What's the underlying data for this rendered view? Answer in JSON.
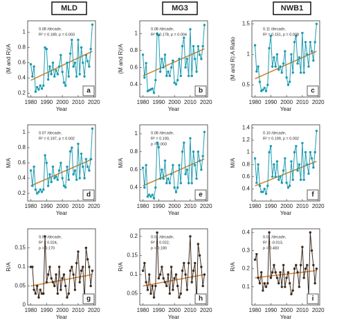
{
  "column_headers": [
    "MLD",
    "MG3",
    "NWB1"
  ],
  "chart_data": [
    {
      "type": "line",
      "panel_label": "a",
      "ylabel": "(M and R)/A",
      "xlabel": "Year",
      "annotations": [
        "0.08 /decade,",
        "R² = 0.189, p = 0.003"
      ],
      "x": [
        1980,
        1981,
        1982,
        1983,
        1984,
        1985,
        1986,
        1987,
        1988,
        1989,
        1990,
        1991,
        1992,
        1993,
        1994,
        1995,
        1996,
        1997,
        1998,
        1999,
        2000,
        2001,
        2002,
        2003,
        2004,
        2005,
        2006,
        2007,
        2008,
        2009,
        2010,
        2011,
        2012,
        2013,
        2014,
        2015,
        2016,
        2017,
        2018,
        2019
      ],
      "values": [
        0.58,
        0.42,
        0.55,
        0.22,
        0.28,
        0.25,
        0.3,
        0.26,
        0.3,
        0.8,
        0.78,
        0.38,
        0.55,
        0.45,
        0.6,
        0.42,
        0.5,
        0.45,
        0.55,
        0.7,
        0.48,
        0.34,
        0.3,
        0.6,
        0.42,
        0.72,
        0.9,
        0.55,
        0.6,
        0.42,
        0.9,
        0.45,
        0.8,
        0.6,
        0.42,
        0.7,
        0.62,
        0.55,
        0.78,
        1.1
      ],
      "color": "#1b9bb0",
      "trend": {
        "x": [
          1980,
          2019
        ],
        "values": [
          0.37,
          0.75
        ],
        "color": "#d9822b"
      },
      "xlim": [
        1978,
        2021
      ],
      "xticks": [
        1980,
        1990,
        2000,
        2010,
        2020
      ],
      "ylim": [
        0.15,
        1.15
      ],
      "yticks": [
        0.2,
        0.4,
        0.6,
        0.8,
        1
      ]
    },
    {
      "type": "line",
      "panel_label": "b",
      "ylabel": "(M and R)/A",
      "xlabel": "Year",
      "annotations": [
        "0.08 /decade,",
        "R² = 0.178, p = 0.004"
      ],
      "x": [
        1980,
        1981,
        1982,
        1983,
        1984,
        1985,
        1986,
        1987,
        1988,
        1989,
        1990,
        1991,
        1992,
        1993,
        1994,
        1995,
        1996,
        1997,
        1998,
        1999,
        2000,
        2001,
        2002,
        2003,
        2004,
        2005,
        2006,
        2007,
        2008,
        2009,
        2010,
        2011,
        2012,
        2013,
        2014,
        2015,
        2016,
        2017,
        2018,
        2019
      ],
      "values": [
        0.75,
        0.48,
        0.65,
        0.32,
        0.33,
        0.34,
        0.35,
        0.3,
        0.45,
        1.0,
        0.98,
        0.55,
        0.7,
        0.6,
        0.75,
        0.5,
        0.55,
        0.5,
        0.6,
        0.68,
        0.42,
        0.4,
        0.45,
        0.7,
        0.5,
        0.85,
        0.95,
        0.6,
        0.7,
        0.5,
        1.05,
        0.5,
        0.85,
        0.7,
        0.55,
        0.85,
        0.75,
        0.7,
        0.85,
        1.1
      ],
      "color": "#1b9bb0",
      "trend": {
        "x": [
          1980,
          2019
        ],
        "values": [
          0.5,
          0.82
        ],
        "color": "#d9822b"
      },
      "xlim": [
        1978,
        2021
      ],
      "xticks": [
        1980,
        1990,
        2000,
        2010,
        2020
      ],
      "ylim": [
        0.25,
        1.15
      ],
      "yticks": [
        0.4,
        0.6,
        0.8,
        1
      ]
    },
    {
      "type": "line",
      "panel_label": "c",
      "ylabel": "(M and R):A Ratio",
      "xlabel": "Year",
      "annotations": [
        "0.11 /decade,",
        "R² = 0.151, p = 0.008"
      ],
      "x": [
        1980,
        1981,
        1982,
        1983,
        1984,
        1985,
        1986,
        1987,
        1988,
        1989,
        1990,
        1991,
        1992,
        1993,
        1994,
        1995,
        1996,
        1997,
        1998,
        1999,
        2000,
        2001,
        2002,
        2003,
        2004,
        2005,
        2006,
        2007,
        2008,
        2009,
        2010,
        2011,
        2012,
        2013,
        2014,
        2015,
        2016,
        2017,
        2018,
        2019
      ],
      "values": [
        1.15,
        0.72,
        0.8,
        0.55,
        0.4,
        0.42,
        0.45,
        0.4,
        0.5,
        1.1,
        1.3,
        0.8,
        0.95,
        0.8,
        1.0,
        0.75,
        0.8,
        0.7,
        0.85,
        1.05,
        0.62,
        0.5,
        0.55,
        1.0,
        0.7,
        1.2,
        1.3,
        0.85,
        0.95,
        0.7,
        1.35,
        0.7,
        1.2,
        1.0,
        0.8,
        1.2,
        1.05,
        0.9,
        1.2,
        1.5
      ],
      "color": "#1b9bb0",
      "trend": {
        "x": [
          1980,
          2019
        ],
        "values": [
          0.6,
          1.05
        ],
        "color": "#d9822b"
      },
      "xlim": [
        1978,
        2021
      ],
      "xticks": [
        1980,
        1990,
        2000,
        2010,
        2020
      ],
      "ylim": [
        0.3,
        1.55
      ],
      "yticks": [
        0.5,
        1,
        1.5
      ]
    },
    {
      "type": "line",
      "panel_label": "d",
      "ylabel": "M/A",
      "xlabel": "Year",
      "annotations": [
        "0.07 /decade,",
        "R² = 0.197, p = 0.002"
      ],
      "x": [
        1980,
        1981,
        1982,
        1983,
        1984,
        1985,
        1986,
        1987,
        1988,
        1989,
        1990,
        1991,
        1992,
        1993,
        1994,
        1995,
        1996,
        1997,
        1998,
        1999,
        2000,
        2001,
        2002,
        2003,
        2004,
        2005,
        2006,
        2007,
        2008,
        2009,
        2010,
        2011,
        2012,
        2013,
        2014,
        2015,
        2016,
        2017,
        2018,
        2019
      ],
      "values": [
        0.5,
        0.3,
        0.55,
        0.25,
        0.2,
        0.22,
        0.25,
        0.22,
        0.25,
        0.7,
        0.6,
        0.3,
        0.45,
        0.35,
        0.55,
        0.4,
        0.42,
        0.38,
        0.5,
        0.6,
        0.4,
        0.3,
        0.28,
        0.55,
        0.38,
        0.75,
        0.8,
        0.45,
        0.5,
        0.38,
        0.85,
        0.4,
        0.72,
        0.55,
        0.4,
        0.65,
        0.55,
        0.5,
        0.65,
        1.05
      ],
      "color": "#1b9bb0",
      "trend": {
        "x": [
          1980,
          2019
        ],
        "values": [
          0.3,
          0.65
        ],
        "color": "#d9822b"
      },
      "xlim": [
        1978,
        2021
      ],
      "xticks": [
        1980,
        1990,
        2000,
        2010,
        2020
      ],
      "ylim": [
        0.1,
        1.1
      ],
      "yticks": [
        0.2,
        0.4,
        0.6,
        0.8,
        1
      ]
    },
    {
      "type": "line",
      "panel_label": "e",
      "ylabel": "M/A",
      "xlabel": "Year",
      "annotations": [
        "0.08 /decade,",
        "R² = 0.190,",
        "p = 0.003"
      ],
      "x": [
        1980,
        1981,
        1982,
        1983,
        1984,
        1985,
        1986,
        1987,
        1988,
        1989,
        1990,
        1991,
        1992,
        1993,
        1994,
        1995,
        1996,
        1997,
        1998,
        1999,
        2000,
        2001,
        2002,
        2003,
        2004,
        2005,
        2006,
        2007,
        2008,
        2009,
        2010,
        2011,
        2012,
        2013,
        2014,
        2015,
        2016,
        2017,
        2018,
        2019
      ],
      "values": [
        0.62,
        0.4,
        0.65,
        0.3,
        0.32,
        0.3,
        0.32,
        0.28,
        0.4,
        0.9,
        0.85,
        0.5,
        0.6,
        0.5,
        0.7,
        0.45,
        0.5,
        0.45,
        0.55,
        0.65,
        0.4,
        0.35,
        0.4,
        0.65,
        0.45,
        0.8,
        0.9,
        0.55,
        0.6,
        0.45,
        0.95,
        0.45,
        0.8,
        0.65,
        0.5,
        0.8,
        0.7,
        0.6,
        0.75,
        1.02
      ],
      "color": "#1b9bb0",
      "trend": {
        "x": [
          1980,
          2019
        ],
        "values": [
          0.42,
          0.72
        ],
        "color": "#d9822b"
      },
      "xlim": [
        1978,
        2021
      ],
      "xticks": [
        1980,
        1990,
        2000,
        2010,
        2020
      ],
      "ylim": [
        0.25,
        1.1
      ],
      "yticks": [
        0.4,
        0.6,
        0.8,
        1
      ]
    },
    {
      "type": "line",
      "panel_label": "f",
      "ylabel": "M/A",
      "xlabel": "Year",
      "annotations": [
        "0.10 /decade,",
        "R² = 0.199, p = 0.002"
      ],
      "x": [
        1980,
        1981,
        1982,
        1983,
        1984,
        1985,
        1986,
        1987,
        1988,
        1989,
        1990,
        1991,
        1992,
        1993,
        1994,
        1995,
        1996,
        1997,
        1998,
        1999,
        2000,
        2001,
        2002,
        2003,
        2004,
        2005,
        2006,
        2007,
        2008,
        2009,
        2010,
        2011,
        2012,
        2013,
        2014,
        2015,
        2016,
        2017,
        2018,
        2019
      ],
      "values": [
        0.9,
        0.5,
        0.8,
        0.45,
        0.35,
        0.35,
        0.4,
        0.32,
        0.45,
        1.0,
        1.1,
        0.6,
        0.8,
        0.6,
        0.85,
        0.55,
        0.6,
        0.5,
        0.7,
        0.9,
        0.5,
        0.42,
        0.45,
        0.85,
        0.55,
        1.0,
        1.1,
        0.7,
        0.8,
        0.55,
        1.15,
        0.55,
        1.0,
        0.8,
        0.65,
        1.0,
        0.9,
        0.75,
        1.0,
        1.35
      ],
      "color": "#1b9bb0",
      "trend": {
        "x": [
          1980,
          2019
        ],
        "values": [
          0.45,
          0.85
        ],
        "color": "#d9822b"
      },
      "xlim": [
        1978,
        2021
      ],
      "xticks": [
        1980,
        1990,
        2000,
        2010,
        2020
      ],
      "ylim": [
        0.2,
        1.45
      ],
      "yticks": [
        0.4,
        0.6,
        0.8,
        1,
        1.2,
        1.4
      ]
    },
    {
      "type": "line",
      "panel_label": "g",
      "ylabel": "R/A",
      "xlabel": "Year",
      "annotations": [
        "0.01 /decade,",
        "R² = 0.024,",
        "p = 0.170"
      ],
      "x": [
        1980,
        1981,
        1982,
        1983,
        1984,
        1985,
        1986,
        1987,
        1988,
        1989,
        1990,
        1991,
        1992,
        1993,
        1994,
        1995,
        1996,
        1997,
        1998,
        1999,
        2000,
        2001,
        2002,
        2003,
        2004,
        2005,
        2006,
        2007,
        2008,
        2009,
        2010,
        2011,
        2012,
        2013,
        2014,
        2015,
        2016,
        2017,
        2018,
        2019
      ],
      "values": [
        0.1,
        0.1,
        0.04,
        0.03,
        0.05,
        0.02,
        0.04,
        0.03,
        0.03,
        0.18,
        0.06,
        0.08,
        0.1,
        0.07,
        0.06,
        0.05,
        0.08,
        0.03,
        0.1,
        0.04,
        0.07,
        0.08,
        0.05,
        0.02,
        0.03,
        0.09,
        0.1,
        0.08,
        0.04,
        0.11,
        0.14,
        0.06,
        0.09,
        0.1,
        0.01,
        0.15,
        0.12,
        0.1,
        0.05,
        0.09
      ],
      "color": "#3b2a1e",
      "trend": {
        "x": [
          1980,
          2019
        ],
        "values": [
          0.05,
          0.08
        ],
        "color": "#d9822b"
      },
      "xlim": [
        1978,
        2021
      ],
      "xticks": [
        1980,
        1990,
        2000,
        2010,
        2020
      ],
      "ylim": [
        0,
        0.2
      ],
      "yticks": [
        0,
        0.05,
        0.1,
        0.15
      ]
    },
    {
      "type": "line",
      "panel_label": "h",
      "ylabel": "R/A",
      "xlabel": "Year",
      "annotations": [
        "0.01 /decade,",
        "R² = 0.022,",
        "p = 0.180"
      ],
      "x": [
        1980,
        1981,
        1982,
        1983,
        1984,
        1985,
        1986,
        1987,
        1988,
        1989,
        1990,
        1991,
        1992,
        1993,
        1994,
        1995,
        1996,
        1997,
        1998,
        1999,
        2000,
        2001,
        2002,
        2003,
        2004,
        2005,
        2006,
        2007,
        2008,
        2009,
        2010,
        2011,
        2012,
        2013,
        2014,
        2015,
        2016,
        2017,
        2018,
        2019
      ],
      "values": [
        0.11,
        0.13,
        0.08,
        0.06,
        0.1,
        0.05,
        0.07,
        0.04,
        0.07,
        0.21,
        0.09,
        0.1,
        0.12,
        0.09,
        0.08,
        0.07,
        0.1,
        0.05,
        0.12,
        0.06,
        0.09,
        0.1,
        0.07,
        0.04,
        0.05,
        0.11,
        0.13,
        0.1,
        0.06,
        0.13,
        0.2,
        0.08,
        0.11,
        0.13,
        0.03,
        0.18,
        0.15,
        0.12,
        0.07,
        0.1
      ],
      "color": "#3b2a1e",
      "trend": {
        "x": [
          1980,
          2019
        ],
        "values": [
          0.07,
          0.1
        ],
        "color": "#d9822b"
      },
      "xlim": [
        1978,
        2021
      ],
      "xticks": [
        1980,
        1990,
        2000,
        2010,
        2020
      ],
      "ylim": [
        0.02,
        0.22
      ],
      "yticks": [
        0.05,
        0.1,
        0.15,
        0.2
      ]
    },
    {
      "type": "line",
      "panel_label": "i",
      "ylabel": "R/A",
      "xlabel": "Year",
      "annotations": [
        "0.01 /decade,",
        "R² = -0.013,",
        "p = 0.483"
      ],
      "x": [
        1980,
        1981,
        1982,
        1983,
        1984,
        1985,
        1986,
        1987,
        1988,
        1989,
        1990,
        1991,
        1992,
        1993,
        1994,
        1995,
        1996,
        1997,
        1998,
        1999,
        2000,
        2001,
        2002,
        2003,
        2004,
        2005,
        2006,
        2007,
        2008,
        2009,
        2010,
        2011,
        2012,
        2013,
        2014,
        2015,
        2016,
        2017,
        2018,
        2019
      ],
      "values": [
        0.25,
        0.28,
        0.15,
        0.12,
        0.18,
        0.08,
        0.12,
        0.1,
        0.12,
        0.4,
        0.15,
        0.18,
        0.22,
        0.18,
        0.15,
        0.12,
        0.18,
        0.1,
        0.22,
        0.1,
        0.15,
        0.18,
        0.12,
        0.06,
        0.08,
        0.2,
        0.22,
        0.18,
        0.1,
        0.22,
        0.32,
        0.15,
        0.2,
        0.22,
        0.05,
        0.4,
        0.3,
        0.22,
        0.12,
        0.2
      ],
      "color": "#3b2a1e",
      "trend": {
        "x": [
          1980,
          2019
        ],
        "values": [
          0.15,
          0.19
        ],
        "color": "#d9822b"
      },
      "xlim": [
        1978,
        2021
      ],
      "xticks": [
        1980,
        1990,
        2000,
        2010,
        2020
      ],
      "ylim": [
        0,
        0.42
      ],
      "yticks": [
        0.1,
        0.2,
        0.3,
        0.4
      ]
    }
  ]
}
